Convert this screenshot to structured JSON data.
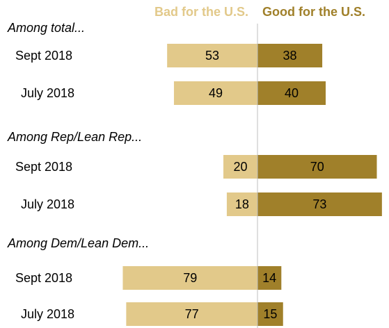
{
  "chart_data": {
    "type": "bar",
    "series": [
      {
        "name": "Bad for the U.S.",
        "color": "#e2c98a"
      },
      {
        "name": "Good for the U.S.",
        "color": "#a0802a"
      }
    ],
    "groups": [
      {
        "title": "Among total...",
        "rows": [
          {
            "label": "Sept 2018",
            "bad": 53,
            "good": 38
          },
          {
            "label": "July 2018",
            "bad": 49,
            "good": 40
          }
        ]
      },
      {
        "title": "Among Rep/Lean Rep...",
        "rows": [
          {
            "label": "Sept 2018",
            "bad": 20,
            "good": 70
          },
          {
            "label": "July 2018",
            "bad": 18,
            "good": 73
          }
        ]
      },
      {
        "title": "Among Dem/Lean Dem...",
        "rows": [
          {
            "label": "Sept 2018",
            "bad": 79,
            "good": 14
          },
          {
            "label": "July 2018",
            "bad": 77,
            "good": 15
          }
        ]
      }
    ],
    "center_line_color": "#bfbfbf"
  }
}
